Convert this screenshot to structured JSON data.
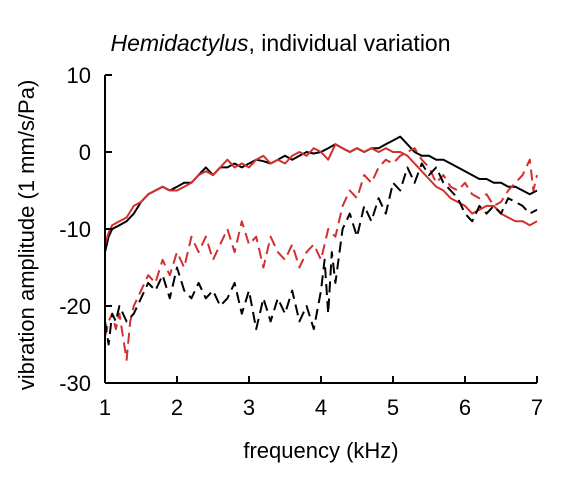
{
  "chart_data": {
    "type": "line",
    "title_italic": "Hemidactylus",
    "title_rest": ", individual variation",
    "xlabel": "frequency (kHz)",
    "ylabel": "vibration amplitude (1 mm/s/Pa)",
    "xlim": [
      1,
      7
    ],
    "ylim": [
      -30,
      10
    ],
    "xticks": [
      1,
      2,
      3,
      4,
      5,
      6,
      7
    ],
    "yticks": [
      10,
      0,
      -10,
      -20,
      -30
    ],
    "grid": false,
    "legend": "none",
    "series": [
      {
        "color": "#000000",
        "dash": "solid",
        "x": [
          1.0,
          1.05,
          1.1,
          1.2,
          1.3,
          1.4,
          1.5,
          1.6,
          1.7,
          1.8,
          1.9,
          2.0,
          2.1,
          2.2,
          2.3,
          2.4,
          2.5,
          2.6,
          2.7,
          2.8,
          2.9,
          3.0,
          3.1,
          3.2,
          3.3,
          3.4,
          3.5,
          3.6,
          3.7,
          3.8,
          3.9,
          4.0,
          4.1,
          4.2,
          4.3,
          4.4,
          4.5,
          4.6,
          4.7,
          4.8,
          4.9,
          5.0,
          5.1,
          5.2,
          5.3,
          5.4,
          5.5,
          5.6,
          5.7,
          5.8,
          5.9,
          6.0,
          6.1,
          6.2,
          6.3,
          6.4,
          6.5,
          6.6,
          6.7,
          6.8,
          6.9,
          7.0
        ],
        "y": [
          -13,
          -11,
          -10,
          -9.5,
          -9,
          -8,
          -6.5,
          -5.5,
          -5,
          -4.5,
          -5,
          -4.5,
          -4,
          -4,
          -3,
          -2,
          -3,
          -2,
          -2,
          -1.5,
          -2,
          -1.5,
          -1,
          -1.2,
          -1.5,
          -1,
          -0.5,
          -1,
          -0.5,
          0,
          -0.2,
          0,
          0.5,
          1,
          0.5,
          0,
          0.5,
          0,
          0.5,
          0.5,
          1,
          1.5,
          2,
          1,
          0,
          -0.5,
          -0.5,
          -1,
          -1,
          -1.5,
          -2,
          -2.5,
          -3,
          -3.5,
          -3.5,
          -4,
          -4,
          -4.5,
          -4.5,
          -5,
          -5.5,
          -5
        ]
      },
      {
        "color": "#d32f2f",
        "dash": "solid",
        "x": [
          1.0,
          1.05,
          1.1,
          1.2,
          1.3,
          1.4,
          1.5,
          1.6,
          1.7,
          1.8,
          1.9,
          2.0,
          2.1,
          2.2,
          2.3,
          2.4,
          2.5,
          2.6,
          2.7,
          2.8,
          2.9,
          3.0,
          3.1,
          3.2,
          3.3,
          3.4,
          3.5,
          3.6,
          3.7,
          3.8,
          3.9,
          4.0,
          4.1,
          4.2,
          4.3,
          4.4,
          4.5,
          4.6,
          4.7,
          4.8,
          4.9,
          5.0,
          5.1,
          5.2,
          5.3,
          5.4,
          5.5,
          5.6,
          5.7,
          5.8,
          5.9,
          6.0,
          6.1,
          6.2,
          6.3,
          6.4,
          6.5,
          6.6,
          6.7,
          6.8,
          6.9,
          7.0
        ],
        "y": [
          -12,
          -10.5,
          -9.5,
          -9,
          -8.5,
          -7,
          -6.5,
          -5.5,
          -5,
          -4.5,
          -5,
          -5,
          -4.5,
          -4,
          -3,
          -2.5,
          -3,
          -2,
          -1,
          -2,
          -1.5,
          -2,
          -1,
          -0.5,
          -1.5,
          -1,
          -1.5,
          -0.5,
          0,
          -0.5,
          0.5,
          0,
          -1,
          1,
          0.5,
          0,
          0.5,
          0,
          0.5,
          0,
          0.5,
          0,
          0,
          -0.5,
          -1.5,
          -2.5,
          -3.5,
          -4.5,
          -5,
          -6,
          -6.5,
          -7,
          -8,
          -7.5,
          -7,
          -7,
          -8,
          -8.5,
          -9,
          -9,
          -9.5,
          -9
        ]
      },
      {
        "color": "#d32f2f",
        "dash": "dashed",
        "x": [
          1.0,
          1.05,
          1.1,
          1.15,
          1.2,
          1.25,
          1.3,
          1.35,
          1.4,
          1.5,
          1.6,
          1.7,
          1.8,
          1.9,
          2.0,
          2.1,
          2.2,
          2.3,
          2.4,
          2.5,
          2.6,
          2.7,
          2.8,
          2.9,
          3.0,
          3.1,
          3.2,
          3.3,
          3.4,
          3.5,
          3.6,
          3.7,
          3.8,
          3.9,
          4.0,
          4.1,
          4.2,
          4.3,
          4.4,
          4.5,
          4.6,
          4.7,
          4.8,
          4.9,
          5.0,
          5.1,
          5.2,
          5.3,
          5.4,
          5.5,
          5.6,
          5.7,
          5.8,
          5.9,
          6.0,
          6.1,
          6.2,
          6.3,
          6.4,
          6.5,
          6.6,
          6.7,
          6.8,
          6.9,
          6.95,
          7.0
        ],
        "y": [
          -24,
          -22,
          -21,
          -23,
          -21,
          -24,
          -27,
          -22,
          -20,
          -18,
          -16,
          -17,
          -14,
          -16,
          -13,
          -15,
          -11,
          -13,
          -11,
          -14,
          -12,
          -10,
          -13,
          -9,
          -12,
          -11,
          -15,
          -11,
          -13,
          -14,
          -12,
          -15,
          -13,
          -12,
          -14,
          -10,
          -11,
          -7,
          -5,
          -6,
          -3,
          -4,
          -2,
          -1,
          -1.5,
          -0.5,
          0,
          0.5,
          -1,
          -2,
          -4,
          -3,
          -4.5,
          -5,
          -4,
          -5.5,
          -6,
          -5.5,
          -7,
          -6.5,
          -5,
          -4,
          -3,
          -1,
          -5,
          -3
        ]
      },
      {
        "color": "#000000",
        "dash": "dashed",
        "x": [
          1.0,
          1.05,
          1.1,
          1.15,
          1.2,
          1.3,
          1.4,
          1.5,
          1.6,
          1.7,
          1.8,
          1.9,
          2.0,
          2.1,
          2.2,
          2.3,
          2.4,
          2.5,
          2.6,
          2.7,
          2.8,
          2.9,
          3.0,
          3.1,
          3.2,
          3.3,
          3.4,
          3.5,
          3.6,
          3.7,
          3.8,
          3.9,
          4.0,
          4.05,
          4.1,
          4.15,
          4.2,
          4.3,
          4.4,
          4.5,
          4.6,
          4.7,
          4.8,
          4.9,
          5.0,
          5.1,
          5.2,
          5.3,
          5.4,
          5.5,
          5.6,
          5.7,
          5.8,
          5.9,
          6.0,
          6.1,
          6.2,
          6.3,
          6.4,
          6.5,
          6.6,
          6.7,
          6.8,
          6.9,
          7.0
        ],
        "y": [
          -22,
          -25,
          -21,
          -22,
          -20,
          -22,
          -21,
          -19,
          -17,
          -18,
          -16,
          -19,
          -15,
          -18,
          -19,
          -17,
          -19,
          -18,
          -20,
          -19,
          -17,
          -21,
          -18,
          -23,
          -19,
          -22,
          -19,
          -21,
          -18,
          -22,
          -20,
          -23,
          -18,
          -14,
          -21,
          -13,
          -17,
          -10,
          -8,
          -11,
          -7,
          -9,
          -6,
          -8,
          -4,
          -5,
          -2,
          -4,
          -1.5,
          -3,
          -2,
          -4,
          -5,
          -6,
          -8,
          -9,
          -7,
          -8,
          -7,
          -8,
          -6,
          -6.5,
          -7,
          -8,
          -7.5
        ]
      }
    ]
  }
}
